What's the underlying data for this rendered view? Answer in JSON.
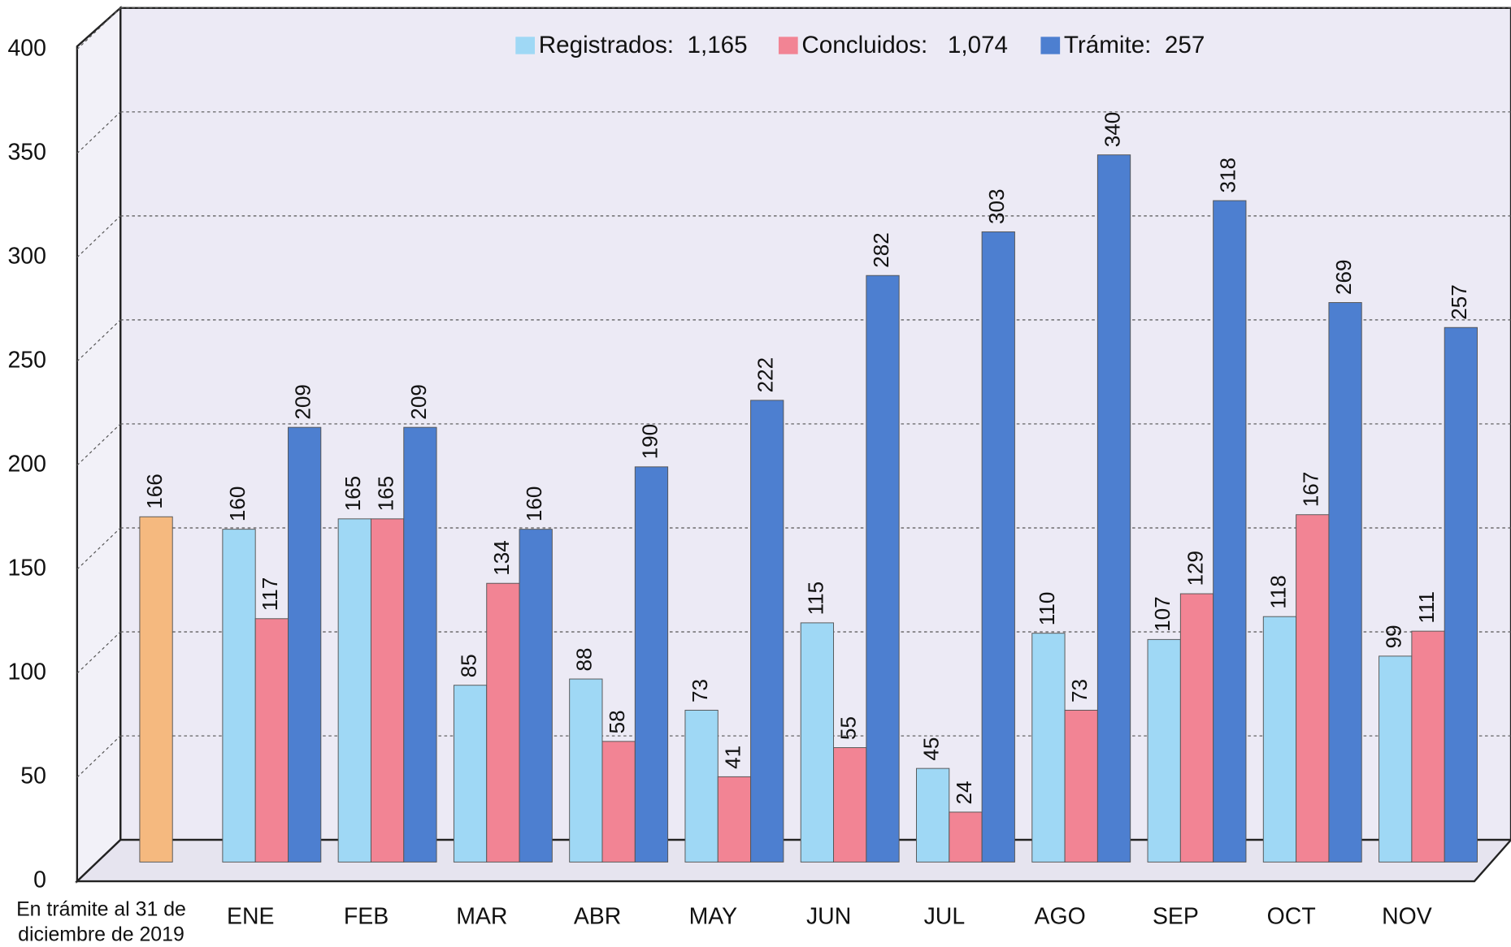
{
  "chart_data": {
    "type": "bar",
    "categories": [
      "En trámite al 31 de diciembre de 2019",
      "ENE",
      "FEB",
      "MAR",
      "ABR",
      "MAY",
      "JUN",
      "JUL",
      "AGO",
      "SEP",
      "OCT",
      "NOV"
    ],
    "initial": {
      "value": 166,
      "color": "#f5b97f"
    },
    "series": [
      {
        "name": "Registrados:  1,165",
        "color": "#9fd8f5",
        "values": [
          null,
          160,
          165,
          85,
          88,
          73,
          115,
          45,
          110,
          107,
          118,
          99
        ]
      },
      {
        "name": "Concluidos:   1,074",
        "color": "#f28494",
        "values": [
          null,
          117,
          165,
          134,
          58,
          41,
          55,
          24,
          73,
          129,
          167,
          111
        ]
      },
      {
        "name": "Trámite:  257",
        "color": "#4d7fd0",
        "values": [
          null,
          209,
          209,
          160,
          190,
          222,
          282,
          303,
          340,
          318,
          269,
          257
        ]
      }
    ],
    "ylim": [
      0,
      400
    ],
    "yticks": [
      0,
      50,
      100,
      150,
      200,
      250,
      300,
      350,
      400
    ],
    "grid": true
  }
}
